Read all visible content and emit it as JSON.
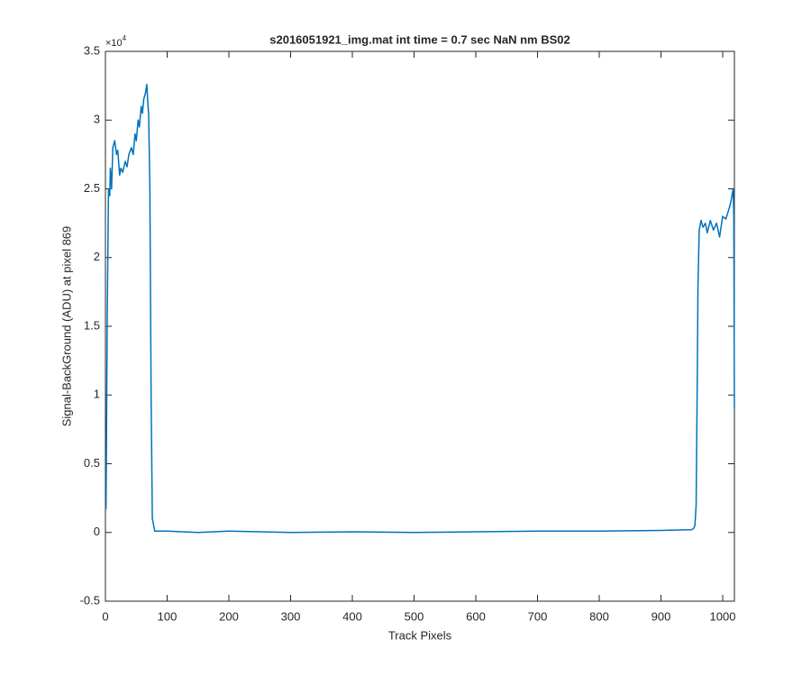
{
  "chart_data": {
    "type": "line",
    "title": "s2016051921_img.mat int time = 0.7 sec  NaN nm BS02",
    "xlabel": "Track Pixels",
    "ylabel": "Signal-BackGround (ADU) at pixel 869",
    "y_multiplier": {
      "base": "×10",
      "exponent": "4"
    },
    "color": "#0072bd",
    "x": [
      1,
      3,
      5,
      7,
      8,
      10,
      12,
      15,
      18,
      20,
      23,
      25,
      28,
      32,
      35,
      38,
      42,
      45,
      48,
      50,
      53,
      55,
      58,
      60,
      62,
      65,
      67,
      69,
      70,
      72,
      74,
      76,
      80,
      100,
      150,
      200,
      300,
      400,
      500,
      600,
      700,
      800,
      900,
      950,
      953,
      955,
      957,
      959,
      960,
      962,
      965,
      968,
      972,
      975,
      980,
      985,
      990,
      995,
      1000,
      1005,
      1010,
      1013,
      1017,
      1018,
      1019
    ],
    "values": [
      0.17,
      1.6,
      2.5,
      2.45,
      2.65,
      2.5,
      2.8,
      2.85,
      2.75,
      2.78,
      2.6,
      2.65,
      2.62,
      2.7,
      2.66,
      2.75,
      2.8,
      2.75,
      2.9,
      2.85,
      3.0,
      2.95,
      3.1,
      3.05,
      3.15,
      3.2,
      3.26,
      3.1,
      3.05,
      2.5,
      1.0,
      0.1,
      0.01,
      0.01,
      0.0,
      0.01,
      0.0,
      0.005,
      0.0,
      0.005,
      0.01,
      0.01,
      0.015,
      0.02,
      0.03,
      0.05,
      0.2,
      1.2,
      1.8,
      2.2,
      2.27,
      2.22,
      2.25,
      2.18,
      2.27,
      2.2,
      2.25,
      2.15,
      2.3,
      2.28,
      2.35,
      2.4,
      2.5,
      2.3,
      0.9
    ],
    "xlim": [
      0,
      1019
    ],
    "xticks": [
      0,
      100,
      200,
      300,
      400,
      500,
      600,
      700,
      800,
      900,
      1000
    ],
    "ylim": [
      -0.5,
      3.5
    ],
    "yticks": [
      -0.5,
      0,
      0.5,
      1,
      1.5,
      2,
      2.5,
      3,
      3.5
    ]
  }
}
